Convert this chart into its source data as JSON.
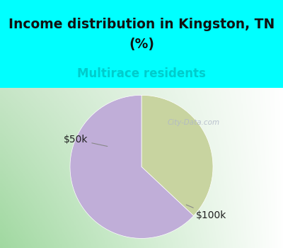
{
  "title_line1": "Income distribution in Kingston, TN",
  "title_line2": "(%)",
  "subtitle": "Multirace residents",
  "title_color": "#111111",
  "subtitle_color": "#00cccc",
  "title_bg_color": "#00ffff",
  "chart_bg_left": "#c8e6c9",
  "chart_bg_right": "#f5f5f5",
  "slices": [
    0.37,
    0.63
  ],
  "colors": [
    "#c8d4a0",
    "#c0aed8"
  ],
  "start_angle": 90,
  "title_fontsize": 13.5,
  "subtitle_fontsize": 12,
  "label_fontsize": 10,
  "watermark": "City-Data.com",
  "label_50k": "$50k",
  "label_100k": "$100k"
}
